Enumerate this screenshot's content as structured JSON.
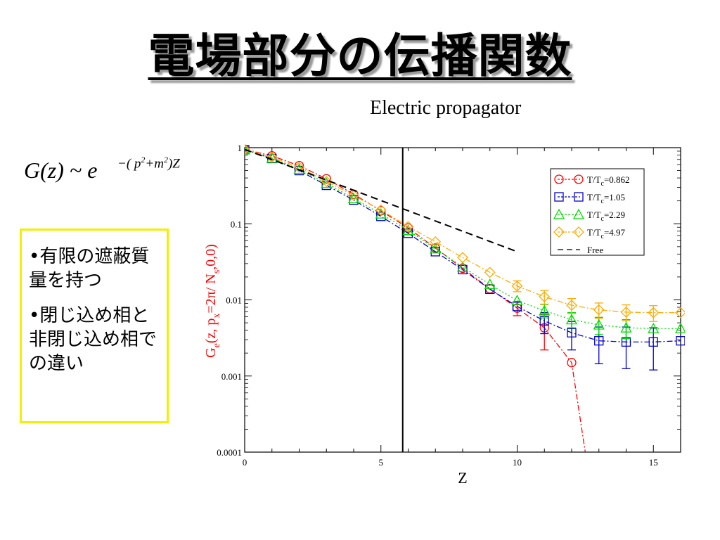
{
  "slide": {
    "title": "電場部分の伝播関数",
    "subtitle": "Electric propagator"
  },
  "formula": {
    "lhs": "G(z) ~ e",
    "exponent_prefix": "−( p",
    "exponent_p_power": "2",
    "exponent_mid": "+m",
    "exponent_m_power": "2",
    "exponent_suffix": ")Z"
  },
  "notes": [
    "•有限の遮蔽質量を持つ",
    "•閉じ込め相と非閉じ込め相での違い"
  ],
  "colors": {
    "highlight_box_border": "#f2ef00",
    "ylabel": "#ff0000"
  },
  "chart_data": {
    "type": "scatter",
    "xlabel": "Z",
    "ylabel": "Ge(z, px=2π/ Ns,0,0)",
    "ylabel_parts": {
      "G": "G",
      "e": "e",
      "mid1": "(z, p",
      "x": "x",
      "mid2": "=2π/ N",
      "s": "s",
      "end": ",0,0)"
    },
    "xlim": [
      0,
      16
    ],
    "ylim": [
      0.0001,
      1
    ],
    "yscale": "log",
    "x_ticks": [
      "0",
      "5",
      "10",
      "15"
    ],
    "y_ticks": [
      "0.0001",
      "0.001",
      "0.01",
      "0.1",
      "1"
    ],
    "vertical_line_x": 5.8,
    "legend_position": "top-right",
    "series": [
      {
        "name": "T/Tc=0.862",
        "name_parts": [
          "T/T",
          "c",
          "=0.862"
        ],
        "color": "#ff0000",
        "marker": "circle",
        "dash": "8 3 2 3",
        "x": [
          0,
          1,
          2,
          3,
          4,
          5,
          6,
          7,
          8,
          9,
          10,
          11,
          12,
          12.5
        ],
        "y": [
          0.95,
          0.78,
          0.58,
          0.39,
          0.245,
          0.148,
          0.088,
          0.048,
          0.026,
          0.014,
          0.0078,
          0.0043,
          0.0015,
          0.0001
        ],
        "err_lo": [
          null,
          null,
          null,
          null,
          null,
          null,
          null,
          null,
          null,
          null,
          0.0062,
          0.0022,
          null,
          null
        ],
        "err_hi": [
          null,
          null,
          null,
          null,
          null,
          null,
          null,
          null,
          null,
          null,
          0.0095,
          0.0065,
          null,
          null
        ],
        "markers": [
          true,
          true,
          true,
          true,
          true,
          true,
          true,
          true,
          true,
          true,
          true,
          true,
          true,
          false
        ]
      },
      {
        "name": "T/Tc=1.05",
        "name_parts": [
          "T/T",
          "c",
          "=1.05"
        ],
        "color": "#0000cc",
        "marker": "square",
        "dash": "8 3 2 3",
        "x": [
          0,
          1,
          2,
          3,
          4,
          5,
          6,
          7,
          8,
          9,
          10,
          11,
          12,
          13,
          14,
          15,
          16
        ],
        "y": [
          0.94,
          0.72,
          0.5,
          0.32,
          0.205,
          0.125,
          0.075,
          0.043,
          0.025,
          0.0138,
          0.0082,
          0.0053,
          0.0037,
          0.0029,
          0.0028,
          0.0028,
          0.0029
        ],
        "err_lo": [
          null,
          null,
          null,
          null,
          null,
          null,
          null,
          null,
          null,
          null,
          null,
          0.0036,
          0.0022,
          0.00145,
          0.00125,
          0.0012,
          null
        ],
        "err_hi": [
          null,
          null,
          null,
          null,
          null,
          null,
          null,
          null,
          null,
          null,
          null,
          0.0068,
          0.0052,
          0.0044,
          0.0044,
          0.0043,
          null
        ],
        "markers": true
      },
      {
        "name": "T/Tc=2.29",
        "name_parts": [
          "T/T",
          "c",
          "=2.29"
        ],
        "color": "#00dd00",
        "marker": "triangle",
        "dash": "2 3",
        "x": [
          0,
          1,
          2,
          3,
          4,
          5,
          6,
          7,
          8,
          9,
          10,
          11,
          12,
          13,
          14,
          15,
          16
        ],
        "y": [
          0.94,
          0.73,
          0.52,
          0.34,
          0.215,
          0.135,
          0.082,
          0.047,
          0.027,
          0.016,
          0.0098,
          0.0072,
          0.0055,
          0.0047,
          0.0043,
          0.0042,
          0.0042
        ],
        "err_lo": [
          null,
          null,
          null,
          null,
          null,
          null,
          null,
          null,
          null,
          null,
          null,
          0.0058,
          0.0043,
          0.0035,
          0.0031,
          null,
          null
        ],
        "err_hi": [
          null,
          null,
          null,
          null,
          null,
          null,
          null,
          null,
          null,
          null,
          null,
          0.0087,
          0.0068,
          0.0059,
          0.0055,
          null,
          null
        ],
        "markers": true
      },
      {
        "name": "T/Tc=4.97",
        "name_parts": [
          "T/T",
          "c",
          "=4.97"
        ],
        "color": "#ffaa00",
        "marker": "diamond",
        "dash": "8 3 2 3",
        "x": [
          0,
          1,
          2,
          3,
          4,
          5,
          6,
          7,
          8,
          9,
          10,
          11,
          12,
          13,
          14,
          15,
          16
        ],
        "y": [
          0.95,
          0.75,
          0.55,
          0.36,
          0.235,
          0.152,
          0.092,
          0.058,
          0.036,
          0.023,
          0.0152,
          0.011,
          0.0085,
          0.0074,
          0.0069,
          0.0068,
          0.0068
        ],
        "err_lo": [
          null,
          null,
          null,
          null,
          null,
          null,
          null,
          null,
          null,
          null,
          0.0128,
          0.0088,
          0.0066,
          0.0057,
          0.0053,
          0.0052,
          null
        ],
        "err_hi": [
          null,
          null,
          null,
          null,
          null,
          null,
          null,
          null,
          null,
          null,
          0.0178,
          0.0133,
          0.0104,
          0.0091,
          0.0086,
          0.0084,
          null
        ],
        "markers": true
      },
      {
        "name": "Free",
        "name_parts": [
          "Free",
          "",
          ""
        ],
        "color": "#000000",
        "marker": "none",
        "dash": "10 6",
        "x": [
          0,
          10
        ],
        "y": [
          0.95,
          0.043
        ],
        "markers": false
      }
    ]
  }
}
